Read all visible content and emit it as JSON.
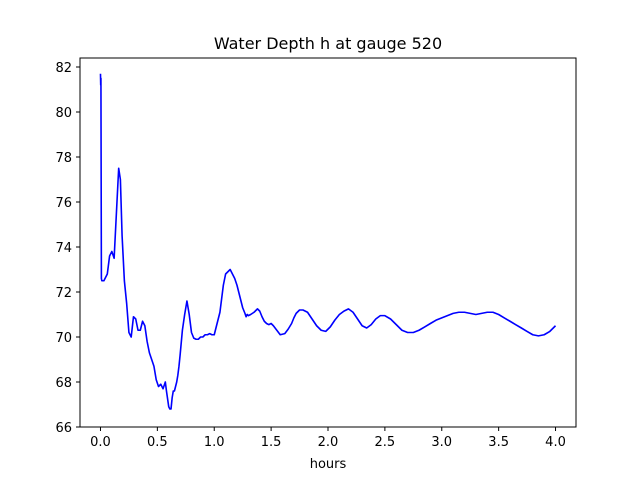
{
  "chart_data": {
    "type": "line",
    "title": "Water Depth h at gauge 520",
    "xlabel": "hours",
    "ylabel": "",
    "xlim": [
      -0.18,
      4.18
    ],
    "ylim": [
      66,
      82.4
    ],
    "x_ticks": [
      0.0,
      0.5,
      1.0,
      1.5,
      2.0,
      2.5,
      3.0,
      3.5,
      4.0
    ],
    "x_tick_labels": [
      "0.0",
      "0.5",
      "1.0",
      "1.5",
      "2.0",
      "2.5",
      "3.0",
      "3.5",
      "4.0"
    ],
    "y_ticks": [
      66,
      68,
      70,
      72,
      74,
      76,
      78,
      80,
      82
    ],
    "y_tick_labels": [
      "66",
      "68",
      "70",
      "72",
      "74",
      "76",
      "78",
      "80",
      "82"
    ],
    "grid": false,
    "series": [
      {
        "color": "#0000ff",
        "x": [
          0.0,
          0.002,
          0.004,
          0.006,
          0.008,
          0.012,
          0.03,
          0.06,
          0.08,
          0.1,
          0.12,
          0.14,
          0.16,
          0.175,
          0.19,
          0.21,
          0.23,
          0.25,
          0.27,
          0.29,
          0.31,
          0.33,
          0.35,
          0.37,
          0.39,
          0.41,
          0.43,
          0.45,
          0.47,
          0.49,
          0.51,
          0.53,
          0.55,
          0.57,
          0.58,
          0.6,
          0.61,
          0.62,
          0.63,
          0.64,
          0.65,
          0.66,
          0.67,
          0.68,
          0.69,
          0.7,
          0.72,
          0.74,
          0.76,
          0.78,
          0.8,
          0.82,
          0.84,
          0.86,
          0.88,
          0.9,
          0.92,
          0.94,
          0.96,
          0.98,
          1.0,
          1.02,
          1.05,
          1.08,
          1.1,
          1.12,
          1.14,
          1.16,
          1.18,
          1.2,
          1.22,
          1.25,
          1.27,
          1.28,
          1.29,
          1.3,
          1.32,
          1.35,
          1.37,
          1.38,
          1.4,
          1.42,
          1.44,
          1.46,
          1.48,
          1.5,
          1.52,
          1.55,
          1.58,
          1.62,
          1.65,
          1.68,
          1.7,
          1.72,
          1.75,
          1.78,
          1.82,
          1.86,
          1.9,
          1.94,
          1.98,
          2.02,
          2.06,
          2.1,
          2.14,
          2.18,
          2.22,
          2.26,
          2.3,
          2.34,
          2.38,
          2.42,
          2.46,
          2.5,
          2.55,
          2.6,
          2.65,
          2.7,
          2.75,
          2.8,
          2.85,
          2.9,
          2.95,
          3.0,
          3.05,
          3.1,
          3.15,
          3.2,
          3.25,
          3.3,
          3.35,
          3.4,
          3.45,
          3.5,
          3.55,
          3.6,
          3.65,
          3.7,
          3.75,
          3.8,
          3.85,
          3.9,
          3.95,
          4.0
        ],
        "y": [
          81.7,
          81.2,
          81.5,
          77.0,
          72.6,
          72.5,
          72.5,
          72.8,
          73.6,
          73.8,
          73.5,
          75.5,
          77.5,
          77.0,
          74.5,
          72.5,
          71.5,
          70.2,
          70.0,
          70.9,
          70.8,
          70.3,
          70.3,
          70.7,
          70.5,
          69.8,
          69.3,
          69.0,
          68.7,
          68.1,
          67.8,
          67.9,
          67.7,
          68.0,
          67.6,
          66.9,
          66.8,
          66.8,
          67.3,
          67.6,
          67.6,
          67.8,
          68.0,
          68.3,
          68.7,
          69.2,
          70.3,
          71.0,
          71.6,
          71.0,
          70.2,
          69.95,
          69.9,
          69.9,
          70.0,
          70.0,
          70.1,
          70.1,
          70.15,
          70.1,
          70.1,
          70.5,
          71.1,
          72.3,
          72.8,
          72.9,
          73.0,
          72.8,
          72.6,
          72.3,
          71.9,
          71.3,
          71.05,
          70.9,
          71.0,
          70.95,
          71.0,
          71.1,
          71.2,
          71.25,
          71.15,
          70.9,
          70.7,
          70.6,
          70.55,
          70.6,
          70.5,
          70.3,
          70.1,
          70.15,
          70.35,
          70.6,
          70.85,
          71.05,
          71.2,
          71.2,
          71.1,
          70.8,
          70.5,
          70.3,
          70.25,
          70.45,
          70.75,
          71.0,
          71.15,
          71.25,
          71.1,
          70.8,
          70.5,
          70.4,
          70.55,
          70.8,
          70.95,
          70.95,
          70.8,
          70.55,
          70.3,
          70.2,
          70.2,
          70.3,
          70.45,
          70.6,
          70.75,
          70.85,
          70.95,
          71.05,
          71.1,
          71.1,
          71.05,
          71.0,
          71.05,
          71.1,
          71.1,
          71.0,
          70.85,
          70.7,
          70.55,
          70.4,
          70.25,
          70.1,
          70.05,
          70.1,
          70.25,
          70.5
        ]
      }
    ]
  }
}
